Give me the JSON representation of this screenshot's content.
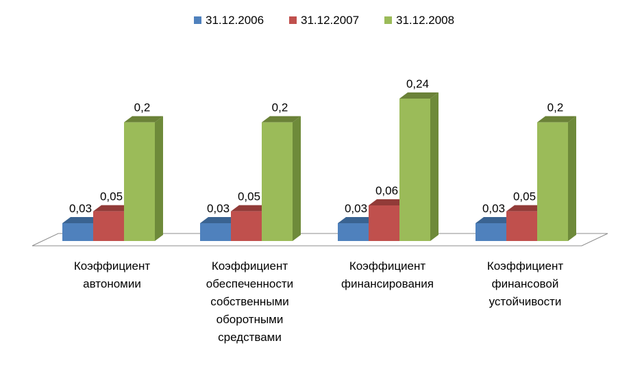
{
  "chart_data": {
    "type": "bar",
    "title": "",
    "xlabel": "",
    "ylabel": "",
    "ylim": [
      0,
      0.26
    ],
    "grid": false,
    "legend_position": "top",
    "categories": [
      "Коэффициент автономии",
      "Коэффициент обеспеченности собственными оборотными средствами",
      "Коэффициент финансирования",
      "Коэффициент финансовой устойчивости"
    ],
    "category_label_lines": [
      [
        "Коэффициент",
        "автономии"
      ],
      [
        "Коэффициент",
        "обеспеченности",
        "собственными",
        "оборотными",
        "средствами"
      ],
      [
        "Коэффициент",
        "финансирования"
      ],
      [
        "Коэффициент",
        "финансовой",
        "устойчивости"
      ]
    ],
    "series": [
      {
        "name": "31.12.2006",
        "values": [
          0.03,
          0.03,
          0.03,
          0.03
        ],
        "labels": [
          "0,03",
          "0,03",
          "0,03",
          "0,03"
        ],
        "color": "#4F81BD"
      },
      {
        "name": "31.12.2007",
        "values": [
          0.05,
          0.05,
          0.06,
          0.05
        ],
        "labels": [
          "0,05",
          "0,05",
          "0,06",
          "0,05"
        ],
        "color": "#C0504D"
      },
      {
        "name": "31.12.2008",
        "values": [
          0.2,
          0.2,
          0.24,
          0.2
        ],
        "labels": [
          "0,2",
          "0,2",
          "0,24",
          "0,2"
        ],
        "color": "#9BBB59"
      }
    ],
    "colors": {
      "series_dark": [
        "#3A6391",
        "#923B38",
        "#6B8238"
      ],
      "series_side": [
        "#385D8A",
        "#8C3A37",
        "#6E8A3A"
      ],
      "floor_stroke": "#8C8C8C"
    }
  }
}
